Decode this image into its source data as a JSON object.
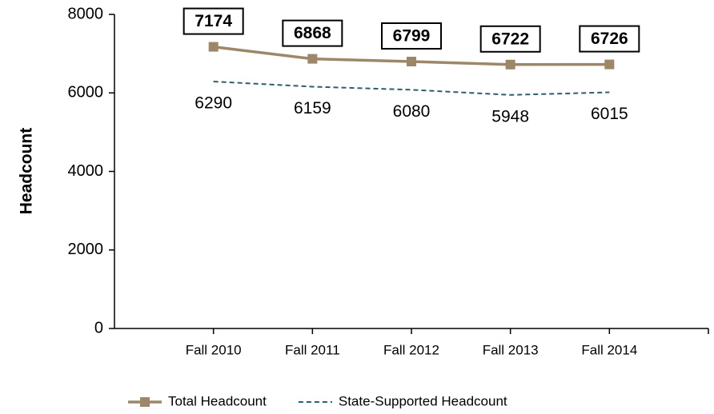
{
  "chart_data": {
    "type": "line",
    "y_label": "Headcount",
    "categories": [
      "Fall 2010",
      "Fall 2011",
      "Fall 2012",
      "Fall 2013",
      "Fall 2014"
    ],
    "series": [
      {
        "name": "Total Headcount",
        "color": "#9d8769",
        "values": [
          7174,
          6868,
          6799,
          6722,
          6726
        ]
      },
      {
        "name": "State-Supported Headcount",
        "color": "#2f5d69",
        "values": [
          6290,
          6159,
          6080,
          5948,
          6015
        ]
      }
    ],
    "ylim": [
      0,
      8000
    ],
    "yticks": [
      0,
      2000,
      4000,
      6000,
      8000
    ],
    "grid": false,
    "legend": "bottom"
  }
}
